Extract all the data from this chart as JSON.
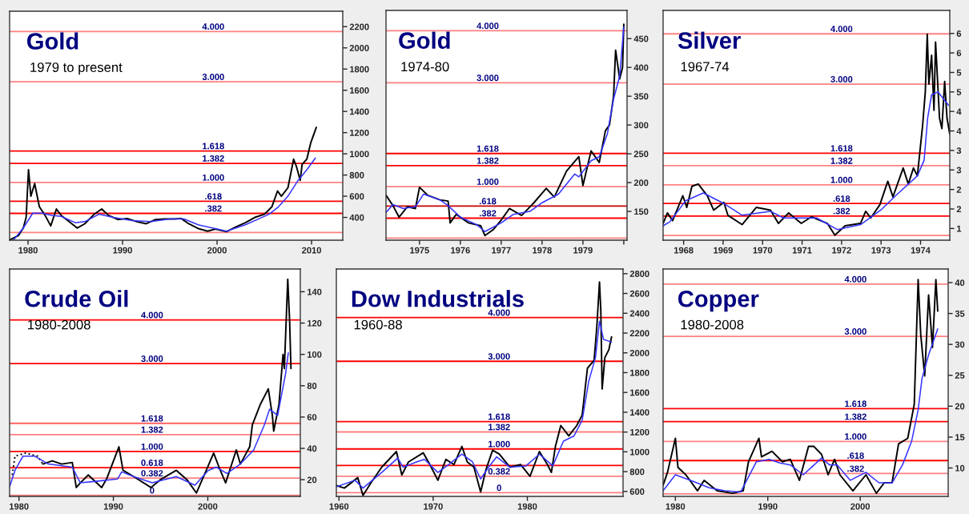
{
  "chart_data": [
    {
      "type": "line",
      "title": "Gold",
      "subtitle": "1979 to present",
      "xlim": [
        1978.05,
        2013.3
      ],
      "xticks": [
        1980,
        1990,
        2000,
        2010
      ],
      "ylim": [
        185,
        2346
      ],
      "yticks": [
        400,
        600,
        800,
        1000,
        1200,
        1400,
        1600,
        1800,
        2000,
        2200
      ],
      "series": [
        {
          "color": "#000000",
          "x": [
            1978.1,
            1979.0,
            1979.5,
            1979.8,
            1980.05,
            1980.3,
            1980.7,
            1981.2,
            1981.8,
            1982.4,
            1983.0,
            1983.5,
            1984.5,
            1985.2,
            1986.0,
            1987.0,
            1987.8,
            1988.5,
            1989.5,
            1990.5,
            1991.5,
            1992.5,
            1993.5,
            1994.5,
            1995.5,
            1996.2,
            1997.0,
            1998.0,
            1999.0,
            1999.8,
            2001.0,
            2002.0,
            2003.0,
            2004.0,
            2005.0,
            2005.8,
            2006.4,
            2006.8,
            2007.5,
            2008.1,
            2008.4,
            2008.8,
            2009.0,
            2009.5,
            2009.9,
            2010.3,
            2010.5
          ],
          "values": [
            190,
            230,
            300,
            400,
            850,
            600,
            720,
            500,
            420,
            320,
            480,
            420,
            350,
            300,
            340,
            430,
            480,
            420,
            380,
            390,
            360,
            340,
            380,
            385,
            385,
            390,
            340,
            295,
            270,
            290,
            265,
            310,
            350,
            400,
            430,
            500,
            650,
            600,
            680,
            950,
            880,
            750,
            900,
            950,
            1100,
            1200,
            1250
          ]
        },
        {
          "color": "#3333ff",
          "x": [
            1978.5,
            1979.5,
            1980.5,
            1981.5,
            1982.5,
            1983.5,
            1985.0,
            1986.0,
            1987.5,
            1989.0,
            1991.0,
            1993.0,
            1995.0,
            1996.5,
            1998.0,
            2000.0,
            2001.0,
            2003.0,
            2004.5,
            2005.5,
            2006.5,
            2007.5,
            2008.5,
            2009.5,
            2010.4
          ],
          "values": [
            190,
            300,
            440,
            440,
            420,
            410,
            350,
            360,
            430,
            400,
            370,
            360,
            385,
            385,
            330,
            290,
            270,
            330,
            390,
            430,
            500,
            600,
            740,
            850,
            960
          ]
        }
      ],
      "ref_lines": [
        {
          "axis": "y",
          "value": 2155,
          "color": "#ff8080"
        },
        {
          "axis": "y",
          "value": 1680,
          "color": "#ff8080"
        },
        {
          "axis": "y",
          "value": 1027,
          "color": "#ff0000"
        },
        {
          "axis": "y",
          "value": 910,
          "color": "#ff0000"
        },
        {
          "axis": "y",
          "value": 730,
          "color": "#ff8080"
        },
        {
          "axis": "y",
          "value": 552,
          "color": "#ff0000"
        },
        {
          "axis": "y",
          "value": 438,
          "color": "#ff0000"
        },
        {
          "axis": "y",
          "value": 257,
          "color": "#ff8080"
        }
      ],
      "annotations": [
        {
          "text": "4.000",
          "x": 1999.6,
          "y": 2155
        },
        {
          "text": "3.000",
          "x": 1999.6,
          "y": 1680
        },
        {
          "text": "1.618",
          "x": 1999.6,
          "y": 1027
        },
        {
          "text": "1.382",
          "x": 1999.6,
          "y": 910
        },
        {
          "text": "1.000",
          "x": 1999.6,
          "y": 730
        },
        {
          "text": ".618",
          "x": 1999.6,
          "y": 552
        },
        {
          "text": ".382",
          "x": 1999.6,
          "y": 438
        }
      ]
    },
    {
      "type": "line",
      "title": "Gold",
      "subtitle": "1974-80",
      "xlim": [
        1974.18,
        1980.08
      ],
      "xticks": [
        1975,
        1976,
        1977,
        1978,
        1979,
        {
          "value": 1980,
          "label": null
        }
      ],
      "ylim": [
        100,
        499
      ],
      "yticks": [
        150,
        200,
        250,
        300,
        350,
        400,
        450
      ],
      "series": [
        {
          "color": "#000000",
          "x": [
            1974.18,
            1974.35,
            1974.5,
            1974.7,
            1974.9,
            1975.0,
            1975.2,
            1975.5,
            1975.7,
            1975.75,
            1975.9,
            1976.2,
            1976.5,
            1976.6,
            1976.8,
            1977.0,
            1977.2,
            1977.5,
            1977.8,
            1978.1,
            1978.3,
            1978.6,
            1978.9,
            1979.0,
            1979.2,
            1979.4,
            1979.55,
            1979.65,
            1979.75,
            1979.8,
            1979.9,
            1979.97,
            1980.0
          ],
          "values": [
            178,
            160,
            140,
            158,
            155,
            192,
            178,
            170,
            168,
            130,
            145,
            130,
            125,
            108,
            118,
            135,
            155,
            143,
            165,
            190,
            175,
            220,
            245,
            195,
            255,
            235,
            290,
            300,
            350,
            430,
            380,
            400,
            475
          ]
        },
        {
          "color": "#3333ff",
          "x": [
            1974.18,
            1974.35,
            1974.6,
            1974.9,
            1975.1,
            1975.5,
            1975.7,
            1976.0,
            1976.4,
            1976.6,
            1977.0,
            1977.3,
            1977.7,
            1978.0,
            1978.4,
            1978.8,
            1978.9,
            1979.2,
            1979.4,
            1979.6,
            1979.75,
            1979.9,
            1980.0
          ],
          "values": [
            148,
            162,
            155,
            158,
            180,
            170,
            160,
            140,
            127,
            115,
            130,
            145,
            150,
            165,
            180,
            215,
            210,
            238,
            245,
            285,
            345,
            385,
            470
          ]
        }
      ],
      "ref_lines": [
        {
          "axis": "y",
          "value": 463.7,
          "color": "#ff8080"
        },
        {
          "axis": "y",
          "value": 373.4,
          "color": "#ff8080"
        },
        {
          "axis": "y",
          "value": 250.5,
          "color": "#ff0000"
        },
        {
          "axis": "y",
          "value": 229.5,
          "color": "#ff0000"
        },
        {
          "axis": "y",
          "value": 193,
          "color": "#ff8080"
        },
        {
          "axis": "y",
          "value": 159.2,
          "color": "#cc0000"
        },
        {
          "axis": "y",
          "value": 138.2,
          "color": "#ff0000"
        },
        {
          "axis": "y",
          "value": 103.6,
          "color": "#ff8080"
        }
      ],
      "annotations": [
        {
          "text": "4.000",
          "x": 1976.67,
          "y": 463.7
        },
        {
          "text": "3.000",
          "x": 1976.67,
          "y": 373.4
        },
        {
          "text": "1.618",
          "x": 1976.67,
          "y": 250.5
        },
        {
          "text": "1.382",
          "x": 1976.67,
          "y": 229.5
        },
        {
          "text": "1.000",
          "x": 1976.67,
          "y": 193
        },
        {
          "text": ".618",
          "x": 1976.67,
          "y": 159.2
        },
        {
          "text": ".382",
          "x": 1976.67,
          "y": 138.2
        }
      ]
    },
    {
      "type": "line",
      "title": "Silver",
      "subtitle": "1967-74",
      "xlim": [
        1967.48,
        1974.74
      ],
      "xticks": [
        1968,
        1969,
        1970,
        1971,
        1972,
        1973,
        1974
      ],
      "ylim": [
        1.2,
        7.09
      ],
      "yticks": [
        {
          "value": 6.5,
          "label": "6"
        },
        6,
        {
          "value": 5.5,
          "label": "5"
        },
        5,
        {
          "value": 4.5,
          "label": "4"
        },
        4,
        {
          "value": 3.5,
          "label": "3"
        },
        3,
        {
          "value": 2.5,
          "label": "2"
        },
        2,
        {
          "value": 1.5,
          "label": "1"
        }
      ],
      "series": [
        {
          "color": "#000000",
          "x": [
            1967.48,
            1967.59,
            1967.72,
            1967.98,
            1968.08,
            1968.21,
            1968.37,
            1968.6,
            1968.76,
            1969.02,
            1969.12,
            1969.48,
            1969.84,
            1970.2,
            1970.4,
            1970.66,
            1970.98,
            1971.24,
            1971.64,
            1971.83,
            1972.09,
            1972.48,
            1972.61,
            1972.74,
            1972.97,
            1973.17,
            1973.3,
            1973.56,
            1973.69,
            1973.82,
            1973.92,
            1974.05,
            1974.12,
            1974.17,
            1974.21,
            1974.28,
            1974.34,
            1974.38,
            1974.48,
            1974.54,
            1974.61,
            1974.67,
            1974.74
          ],
          "values": [
            1.63,
            1.9,
            1.7,
            2.34,
            2.04,
            2.58,
            2.64,
            2.34,
            1.97,
            2.17,
            1.84,
            1.6,
            2.04,
            1.97,
            1.63,
            1.9,
            1.63,
            1.8,
            1.63,
            1.33,
            1.57,
            1.63,
            1.94,
            1.77,
            2.11,
            2.71,
            2.31,
            3.05,
            2.64,
            3.05,
            2.85,
            4.12,
            5.0,
            6.48,
            5.2,
            5.94,
            4.53,
            6.28,
            4.33,
            4.06,
            5.27,
            4.33,
            3.92
          ]
        },
        {
          "color": "#3333ff",
          "x": [
            1967.48,
            1967.65,
            1968.05,
            1968.5,
            1969.02,
            1969.48,
            1970.2,
            1970.53,
            1970.98,
            1971.37,
            1971.9,
            1972.48,
            1972.99,
            1973.4,
            1973.92,
            1974.09,
            1974.18,
            1974.28,
            1974.44,
            1974.71
          ],
          "values": [
            1.57,
            1.67,
            2.21,
            2.41,
            2.14,
            1.84,
            1.94,
            1.77,
            1.77,
            1.77,
            1.47,
            1.6,
            1.97,
            2.37,
            2.85,
            3.25,
            4.33,
            4.93,
            5.0,
            4.66
          ]
        }
      ],
      "ref_lines": [
        {
          "axis": "y",
          "value": 6.49,
          "color": "#ff8080"
        },
        {
          "axis": "y",
          "value": 5.2,
          "color": "#ff8080"
        },
        {
          "axis": "y",
          "value": 3.43,
          "color": "#ff0000"
        },
        {
          "axis": "y",
          "value": 3.11,
          "color": "#ff8080"
        },
        {
          "axis": "y",
          "value": 2.62,
          "color": "#ff8080"
        },
        {
          "axis": "y",
          "value": 2.14,
          "color": "#ff0000"
        },
        {
          "axis": "y",
          "value": 1.82,
          "color": "#ff0000"
        },
        {
          "axis": "y",
          "value": 1.32,
          "color": "#ff8080"
        }
      ],
      "annotations": [
        {
          "text": "4.000",
          "x": 1972.0,
          "y": 6.49
        },
        {
          "text": "3.000",
          "x": 1972.0,
          "y": 5.2
        },
        {
          "text": "1.618",
          "x": 1972.0,
          "y": 3.43
        },
        {
          "text": "1.382",
          "x": 1972.0,
          "y": 3.11
        },
        {
          "text": "1.000",
          "x": 1972.0,
          "y": 2.62
        },
        {
          "text": ".618",
          "x": 1972.0,
          "y": 2.14
        },
        {
          "text": ".382",
          "x": 1972.0,
          "y": 1.82
        }
      ]
    },
    {
      "type": "line",
      "title": "Crude Oil",
      "subtitle": "1980-2008",
      "xlim": [
        1979.01,
        2009.8
      ],
      "xticks": [
        1980,
        1990,
        2000
      ],
      "ylim": [
        9.35,
        154.5
      ],
      "yticks": [
        20,
        40,
        60,
        80,
        100,
        120,
        140
      ],
      "series": [
        {
          "color": "#000000",
          "line_style": "dotted",
          "x": [
            1979.29,
            1979.58,
            1980.71,
            1981.98,
            1982.54
          ],
          "values": [
            23,
            35,
            37,
            35,
            30
          ]
        },
        {
          "color": "#000000",
          "x": [
            1982.54,
            1983.53,
            1984.52,
            1985.65,
            1986.07,
            1986.5,
            1987.34,
            1988.76,
            1989.32,
            1990.59,
            1991.02,
            1992.15,
            1993.98,
            1994.97,
            1996.67,
            1997.8,
            1998.79,
            1999.77,
            2000.62,
            2001.19,
            2001.89,
            2003.02,
            2003.45,
            2004.44,
            2004.72,
            2005.56,
            2006.41,
            2006.84,
            2006.98,
            2007.54,
            2007.97,
            2008.11,
            2008.47,
            2008.67,
            2008.81
          ],
          "values": [
            30,
            32,
            30,
            31,
            15,
            18,
            23,
            15,
            21,
            41,
            26,
            22,
            15,
            20,
            26,
            20,
            11.5,
            25,
            37,
            28,
            18,
            39,
            30,
            41,
            55,
            68,
            78,
            61,
            51,
            68,
            100,
            91,
            148,
            121,
            91
          ]
        },
        {
          "color": "#3333ff",
          "x": [
            1979.01,
            1979.58,
            1980.42,
            1981.69,
            1983.11,
            1985.65,
            1986.5,
            1988.19,
            1990.45,
            1990.88,
            1992.15,
            1994.12,
            1996.67,
            1998.64,
            2000.06,
            2000.9,
            2002.03,
            2003.45,
            2004.86,
            2005.99,
            2006.55,
            2007.4,
            2008.25,
            2008.53
          ],
          "values": [
            15.5,
            26,
            35,
            35,
            30,
            28,
            18,
            19,
            20.5,
            25,
            22,
            18,
            22,
            16.5,
            26,
            28,
            24,
            30,
            39,
            55,
            65,
            61,
            88,
            101
          ]
        }
      ],
      "ref_lines": [
        {
          "axis": "y",
          "value": 122,
          "color": "#ff0000"
        },
        {
          "axis": "y",
          "value": 94.1,
          "color": "#ff0000"
        },
        {
          "axis": "y",
          "value": 56,
          "color": "#ff6060"
        },
        {
          "axis": "y",
          "value": 48.8,
          "color": "#ff8080"
        },
        {
          "axis": "y",
          "value": 38,
          "color": "#ff0000"
        },
        {
          "axis": "y",
          "value": 27.7,
          "color": "#ff0000"
        },
        {
          "axis": "y",
          "value": 21,
          "color": "#ff8080"
        },
        {
          "axis": "y",
          "value": 10,
          "color": "#ff8080"
        }
      ],
      "annotations": [
        {
          "text": "4.000",
          "x": 1994.1,
          "y": 122
        },
        {
          "text": "3.000",
          "x": 1994.1,
          "y": 94.1
        },
        {
          "text": "1.618",
          "x": 1994.1,
          "y": 56
        },
        {
          "text": "1.382",
          "x": 1994.1,
          "y": 48.8
        },
        {
          "text": "1.000",
          "x": 1994.1,
          "y": 38
        },
        {
          "text": "0.618",
          "x": 1994.1,
          "y": 27.7
        },
        {
          "text": "0.382",
          "x": 1994.1,
          "y": 21
        },
        {
          "text": "0",
          "x": 1994.1,
          "y": 10
        }
      ]
    },
    {
      "type": "line",
      "title": "Dow Industrials",
      "subtitle": "1960-88",
      "xlim": [
        1959.72,
        1990.16
      ],
      "xticks": [
        1960,
        1970,
        1980
      ],
      "ylim": [
        550,
        2847
      ],
      "yticks": [
        600,
        800,
        1000,
        1200,
        1400,
        1600,
        1800,
        2000,
        2200,
        2400,
        2600,
        2800
      ],
      "series": [
        {
          "color": "#000000",
          "x": [
            1959.72,
            1960.57,
            1961.99,
            1962.55,
            1963.4,
            1964.54,
            1966.1,
            1966.67,
            1967.38,
            1968.94,
            1969.65,
            1970.5,
            1971.35,
            1972.2,
            1973.05,
            1973.62,
            1974.33,
            1975.04,
            1975.6,
            1976.31,
            1977.02,
            1978.16,
            1979.29,
            1980.28,
            1981.28,
            1982.13,
            1982.55,
            1982.98,
            1983.55,
            1984.4,
            1985.25,
            1985.82,
            1986.38,
            1987.09,
            1987.38,
            1987.66,
            1987.8,
            1987.94,
            1988.23,
            1988.65,
            1988.94
          ],
          "values": [
            660,
            634,
            739,
            560,
            687,
            845,
            1003,
            766,
            898,
            990,
            871,
            713,
            924,
            871,
            1055,
            898,
            845,
            595,
            819,
            1016,
            977,
            845,
            871,
            753,
            1003,
            871,
            792,
            1055,
            1266,
            1161,
            1266,
            1372,
            1846,
            1925,
            2268,
            2716,
            2426,
            1635,
            1952,
            2031,
            2162
          ]
        },
        {
          "color": "#3333ff",
          "x": [
            1959.72,
            1961.7,
            1962.55,
            1964.54,
            1966.24,
            1966.81,
            1968.23,
            1969.08,
            1970.5,
            1971.63,
            1973.05,
            1974.18,
            1975.04,
            1975.89,
            1976.74,
            1978.16,
            1979.86,
            1981.28,
            1982.7,
            1983.83,
            1984.96,
            1985.82,
            1986.52,
            1987.23,
            1987.66,
            1988.09,
            1988.94
          ],
          "values": [
            647,
            713,
            634,
            792,
            937,
            845,
            898,
            924,
            792,
            871,
            977,
            898,
            726,
            845,
            950,
            845,
            858,
            977,
            858,
            1108,
            1161,
            1319,
            1714,
            1952,
            2320,
            2136,
            2110
          ]
        }
      ],
      "ref_lines": [
        {
          "axis": "y",
          "value": 2357,
          "color": "#ff0000"
        },
        {
          "axis": "y",
          "value": 1915,
          "color": "#ff0000"
        },
        {
          "axis": "y",
          "value": 1306,
          "color": "#ff0000"
        },
        {
          "axis": "y",
          "value": 1201,
          "color": "#ff8080"
        },
        {
          "axis": "y",
          "value": 1029,
          "color": "#ff0000"
        },
        {
          "axis": "y",
          "value": 863,
          "color": "#ff0000"
        },
        {
          "axis": "y",
          "value": 753,
          "color": "#ff8080"
        },
        {
          "axis": "y",
          "value": 587,
          "color": "#ff8080"
        }
      ],
      "annotations": [
        {
          "text": "4.000",
          "x": 1977.0,
          "y": 2357
        },
        {
          "text": "3.000",
          "x": 1977.0,
          "y": 1915
        },
        {
          "text": "1.618",
          "x": 1977.0,
          "y": 1306
        },
        {
          "text": "1.382",
          "x": 1977.0,
          "y": 1201
        },
        {
          "text": "1.000",
          "x": 1977.0,
          "y": 1029
        },
        {
          "text": "0.382",
          "x": 1977.0,
          "y": 753
        },
        {
          "text": "0",
          "x": 1977.0,
          "y": 587
        }
      ]
    },
    {
      "type": "line",
      "title": "Copper",
      "subtitle": "1980-2008",
      "xlim": [
        1978.67,
        2009.52
      ],
      "xticks": [
        1980,
        1990,
        2000
      ],
      "ylim": [
        5.4,
        42.2
      ],
      "yticks": [
        40,
        35,
        30,
        25,
        20,
        15,
        10
      ],
      "series": [
        {
          "color": "#000000",
          "x": [
            1978.67,
            1979.15,
            1980.0,
            1980.28,
            1981.13,
            1982.4,
            1983.11,
            1984.52,
            1986.21,
            1987.34,
            1987.91,
            1989.04,
            1989.32,
            1990.45,
            1991.58,
            1992.43,
            1993.42,
            1994.41,
            1994.97,
            1995.82,
            1996.53,
            1997.23,
            1997.8,
            1999.21,
            2000.62,
            2001.75,
            2002.6,
            2003.45,
            2004.15,
            2005.14,
            2005.85,
            2006.27,
            2006.55,
            2006.98,
            2007.4,
            2007.82,
            2008.19,
            2008.39
          ],
          "values": [
            7.2,
            9.3,
            14.8,
            10.1,
            8.9,
            6.3,
            8.0,
            6.3,
            5.9,
            6.3,
            11.0,
            14.8,
            11.8,
            12.7,
            11.0,
            11.4,
            8.0,
            13.5,
            13.5,
            12.2,
            8.9,
            11.4,
            8.9,
            6.3,
            8.9,
            5.9,
            7.6,
            7.6,
            13.9,
            14.8,
            20.3,
            40.5,
            31.6,
            24.9,
            38.0,
            29.5,
            40.5,
            35.4
          ]
        },
        {
          "color": "#3333ff",
          "x": [
            1978.67,
            1980.0,
            1981.98,
            1983.67,
            1985.37,
            1987.06,
            1988.76,
            1990.17,
            1991.3,
            1992.43,
            1993.84,
            1995.82,
            1996.67,
            1997.51,
            1998.93,
            2000.62,
            2002.03,
            2003.45,
            2004.58,
            2005.56,
            2006.27,
            2006.69,
            2007.4,
            2008.39
          ],
          "values": [
            6.3,
            8.9,
            7.8,
            6.8,
            6.3,
            6.1,
            11.0,
            11.4,
            10.8,
            10.5,
            8.9,
            11.6,
            10.5,
            10.5,
            8.0,
            9.3,
            7.6,
            7.6,
            10.5,
            14.3,
            19.4,
            24.5,
            28.3,
            32.5
          ]
        }
      ],
      "ref_lines": [
        {
          "axis": "y",
          "value": 39.75,
          "color": "#ff8080"
        },
        {
          "axis": "y",
          "value": 31.3,
          "color": "#ff8080"
        },
        {
          "axis": "y",
          "value": 19.6,
          "color": "#ff0000"
        },
        {
          "axis": "y",
          "value": 17.5,
          "color": "#ff0000"
        },
        {
          "axis": "y",
          "value": 14.3,
          "color": "#ff8080"
        },
        {
          "axis": "y",
          "value": 11.2,
          "color": "#ff0000"
        },
        {
          "axis": "y",
          "value": 9.1,
          "color": "#ff8080"
        },
        {
          "axis": "y",
          "value": 5.8,
          "color": "#ff8080"
        }
      ],
      "annotations": [
        {
          "text": "4.000",
          "x": 1999.5,
          "y": 39.75
        },
        {
          "text": "3.000",
          "x": 1999.5,
          "y": 31.3
        },
        {
          "text": "1.618",
          "x": 1999.5,
          "y": 19.6
        },
        {
          "text": "1.382",
          "x": 1999.5,
          "y": 17.5
        },
        {
          "text": "1.000",
          "x": 1999.5,
          "y": 14.3
        },
        {
          "text": ".618",
          "x": 1999.5,
          "y": 11.2
        },
        {
          "text": ".382",
          "x": 1999.5,
          "y": 9.1
        }
      ]
    }
  ]
}
